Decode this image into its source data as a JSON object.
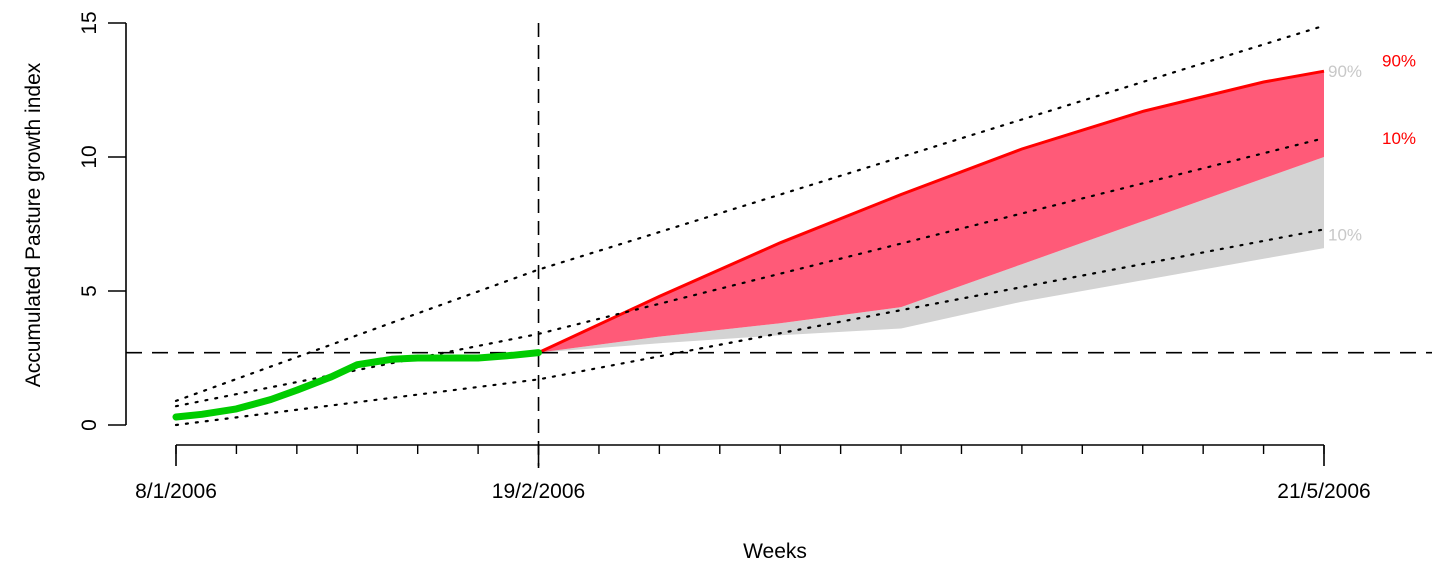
{
  "chart_data": {
    "type": "area",
    "xlabel": "Weeks",
    "ylabel": "Accumulated Pasture growth index",
    "x_tick_labels": [
      "8/1/2006",
      "19/2/2006",
      "21/5/2006"
    ],
    "x_tick_dates": [
      "2006-01-08",
      "2006-02-19",
      "2006-05-21"
    ],
    "x_minor_tick_dates": [
      "2006-01-08",
      "2006-01-15",
      "2006-01-22",
      "2006-01-29",
      "2006-02-05",
      "2006-02-12",
      "2006-02-19",
      "2006-02-26",
      "2006-03-05",
      "2006-03-12",
      "2006-03-19",
      "2006-03-26",
      "2006-04-02",
      "2006-04-09",
      "2006-04-16",
      "2006-04-23",
      "2006-04-30",
      "2006-05-07",
      "2006-05-14",
      "2006-05-21"
    ],
    "y_ticks": [
      0,
      5,
      10,
      15
    ],
    "ylim": [
      0,
      15
    ],
    "xlim": [
      "2006-01-08",
      "2006-05-21"
    ],
    "grid": false,
    "reference_lines": {
      "vertical_date": "2006-02-19",
      "horizontal_y": 2.7
    },
    "series": [
      {
        "role": "observed",
        "color": "#00cc00",
        "points": [
          [
            "2006-01-08",
            0.3
          ],
          [
            "2006-01-11",
            0.4
          ],
          [
            "2006-01-15",
            0.6
          ],
          [
            "2006-01-19",
            0.95
          ],
          [
            "2006-01-22",
            1.3
          ],
          [
            "2006-01-26",
            1.8
          ],
          [
            "2006-01-29",
            2.25
          ],
          [
            "2006-02-02",
            2.45
          ],
          [
            "2006-02-05",
            2.5
          ],
          [
            "2006-02-09",
            2.5
          ],
          [
            "2006-02-12",
            2.5
          ],
          [
            "2006-02-16",
            2.6
          ],
          [
            "2006-02-19",
            2.7
          ]
        ]
      },
      {
        "role": "forecast-red-band",
        "color": "#ff5a78",
        "upper": [
          [
            "2006-02-19",
            2.7
          ],
          [
            "2006-03-05",
            4.8
          ],
          [
            "2006-03-19",
            6.8
          ],
          [
            "2006-04-02",
            8.6
          ],
          [
            "2006-04-16",
            10.3
          ],
          [
            "2006-04-30",
            11.7
          ],
          [
            "2006-05-14",
            12.8
          ],
          [
            "2006-05-21",
            13.2
          ]
        ],
        "lower": [
          [
            "2006-02-19",
            2.7
          ],
          [
            "2006-03-05",
            3.3
          ],
          [
            "2006-03-19",
            3.8
          ],
          [
            "2006-04-02",
            4.4
          ],
          [
            "2006-04-16",
            6.0
          ],
          [
            "2006-04-30",
            7.6
          ],
          [
            "2006-05-14",
            9.2
          ],
          [
            "2006-05-21",
            10.0
          ]
        ],
        "upper_label": "90%",
        "lower_label": "10%"
      },
      {
        "role": "forecast-grey-band",
        "color": "#d3d3d3",
        "upper": [
          [
            "2006-02-19",
            2.7
          ],
          [
            "2006-03-05",
            3.3
          ],
          [
            "2006-03-19",
            3.8
          ],
          [
            "2006-04-02",
            4.4
          ],
          [
            "2006-04-16",
            6.0
          ],
          [
            "2006-04-30",
            7.6
          ],
          [
            "2006-05-14",
            9.2
          ],
          [
            "2006-05-21",
            10.0
          ]
        ],
        "lower": [
          [
            "2006-02-19",
            2.7
          ],
          [
            "2006-03-05",
            3.05
          ],
          [
            "2006-03-19",
            3.35
          ],
          [
            "2006-04-02",
            3.6
          ],
          [
            "2006-04-16",
            4.6
          ],
          [
            "2006-04-30",
            5.4
          ],
          [
            "2006-05-14",
            6.2
          ],
          [
            "2006-05-21",
            6.6
          ]
        ],
        "upper_label": "90%",
        "lower_label": "10%"
      },
      {
        "role": "dotted-line",
        "points": [
          [
            "2006-01-08",
            0.9
          ],
          [
            "2006-02-19",
            5.8
          ],
          [
            "2006-05-21",
            14.9
          ]
        ]
      },
      {
        "role": "dotted-line",
        "points": [
          [
            "2006-01-08",
            0.7
          ],
          [
            "2006-02-19",
            3.4
          ],
          [
            "2006-05-21",
            10.7
          ]
        ]
      },
      {
        "role": "dotted-line",
        "points": [
          [
            "2006-01-08",
            0.0
          ],
          [
            "2006-02-19",
            1.7
          ],
          [
            "2006-05-21",
            7.3
          ]
        ]
      }
    ],
    "colors": {
      "observed": "#00cc00",
      "red_band": "#ff5a78",
      "red_edge": "#ff0000",
      "grey_band": "#d3d3d3",
      "red_label": "#ff0000",
      "grey_label": "#c8c8c8"
    }
  }
}
